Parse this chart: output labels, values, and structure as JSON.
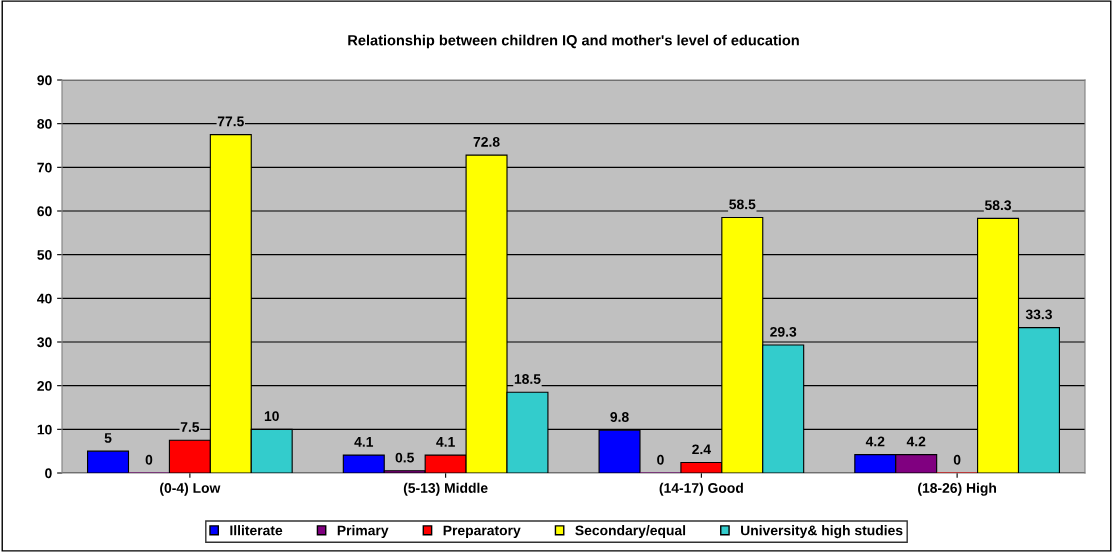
{
  "chart_data": {
    "type": "bar",
    "title": "Relationship between children IQ and mother's level of education",
    "categories": [
      "(0-4) Low",
      "(5-13) Middle",
      "(14-17) Good",
      "(18-26) High"
    ],
    "series": [
      {
        "name": "Illiterate",
        "color": "#0000ff",
        "values": [
          5,
          4.1,
          9.8,
          4.2
        ]
      },
      {
        "name": "Primary",
        "color": "#800080",
        "values": [
          0,
          0.5,
          0,
          4.2
        ]
      },
      {
        "name": "Preparatory",
        "color": "#ff0000",
        "values": [
          7.5,
          4.1,
          2.4,
          0
        ]
      },
      {
        "name": "Secondary/equal",
        "color": "#ffff00",
        "values": [
          77.5,
          72.8,
          58.5,
          58.3
        ]
      },
      {
        "name": "University& high studies",
        "color": "#33cccc",
        "values": [
          10,
          18.5,
          29.3,
          33.3
        ]
      }
    ],
    "ylim": [
      0,
      90
    ],
    "yticks": [
      0,
      10,
      20,
      30,
      40,
      50,
      60,
      70,
      80,
      90
    ],
    "grid": "y",
    "legend": "bottom",
    "data_labels": true
  }
}
